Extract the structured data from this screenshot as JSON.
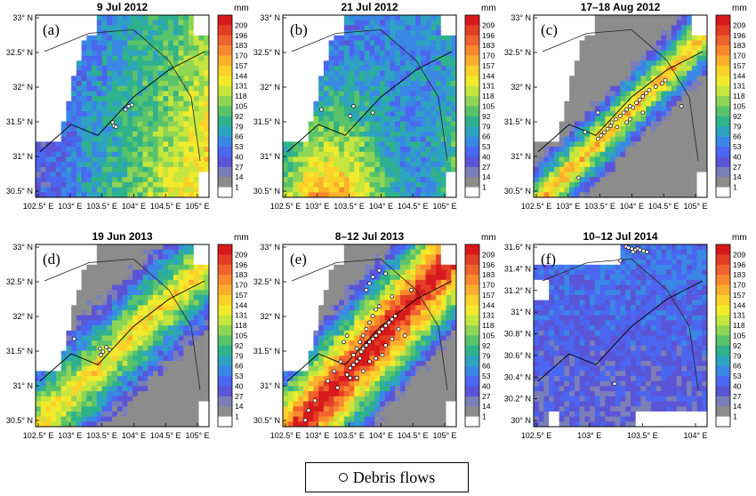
{
  "colorbar": {
    "unit": "mm",
    "ticks": [
      "209",
      "196",
      "183",
      "170",
      "157",
      "144",
      "131",
      "118",
      "105",
      "92",
      "79",
      "66",
      "53",
      "40",
      "27",
      "14",
      "1"
    ],
    "colors": [
      "#d7191c",
      "#e43d26",
      "#f0622e",
      "#f9892e",
      "#fbb02d",
      "#fcd12a",
      "#f2ea2b",
      "#c5e63e",
      "#8fd555",
      "#58c36a",
      "#2fb28b",
      "#2ea3c0",
      "#3b87e6",
      "#4b66f0",
      "#5a55d6",
      "#7b7fb8",
      "#8c8c8c",
      "#ffffff"
    ]
  },
  "legend": {
    "marker": "open-circle",
    "label": "Debris flows"
  },
  "panels": [
    {
      "label": "(a)",
      "title": "9 Jul 2012",
      "yticks": [
        "33° N",
        "32.5° N",
        "32° N",
        "31.5° N",
        "31° N",
        "30.5° N"
      ],
      "xticks": [
        "102.5° E",
        "103° E",
        "103.5° E",
        "104° E",
        "104.5° E",
        "105° E"
      ],
      "intensity": "light",
      "seed": 11,
      "points": [
        [
          103.95,
          31.6
        ],
        [
          104.0,
          31.62
        ],
        [
          103.9,
          31.55
        ],
        [
          103.7,
          31.35
        ],
        [
          103.72,
          31.3
        ],
        [
          103.75,
          31.28
        ]
      ]
    },
    {
      "label": "(b)",
      "title": "21 Jul 2012",
      "yticks": [
        "33° N",
        "32.5° N",
        "32° N",
        "31.5° N",
        "31° N",
        "30.5° N"
      ],
      "xticks": [
        "102.5° E",
        "103° E",
        "103.5° E",
        "104° E",
        "104.5° E",
        "105° E"
      ],
      "intensity": "south",
      "seed": 23,
      "points": [
        [
          103.1,
          31.55
        ],
        [
          103.55,
          31.45
        ],
        [
          103.9,
          31.5
        ],
        [
          103.6,
          31.6
        ]
      ]
    },
    {
      "label": "(c)",
      "title": "17–18 Aug 2012",
      "yticks": [
        "33° N",
        "32.5° N",
        "32° N",
        "31.5° N",
        "31° N",
        "30.5° N"
      ],
      "xticks": [
        "102.5° E",
        "103° E",
        "103.5° E",
        "104° E",
        "104.5° E",
        "105° E"
      ],
      "intensity": "band",
      "seed": 37,
      "points": [
        [
          103.5,
          31.1
        ],
        [
          103.55,
          31.15
        ],
        [
          103.6,
          31.2
        ],
        [
          103.65,
          31.25
        ],
        [
          103.7,
          31.3
        ],
        [
          103.72,
          31.35
        ],
        [
          103.78,
          31.4
        ],
        [
          103.8,
          31.28
        ],
        [
          103.85,
          31.45
        ],
        [
          103.9,
          31.5
        ],
        [
          103.95,
          31.55
        ],
        [
          104.0,
          31.6
        ],
        [
          104.05,
          31.58
        ],
        [
          104.1,
          31.65
        ],
        [
          104.15,
          31.7
        ],
        [
          104.2,
          31.75
        ],
        [
          104.25,
          31.8
        ],
        [
          104.3,
          31.85
        ],
        [
          104.4,
          31.9
        ],
        [
          104.5,
          31.95
        ],
        [
          104.55,
          32.0
        ],
        [
          104.2,
          31.5
        ],
        [
          103.5,
          31.5
        ],
        [
          103.3,
          31.2
        ],
        [
          104.8,
          31.6
        ],
        [
          103.2,
          30.5
        ],
        [
          104.0,
          31.4
        ],
        [
          103.95,
          31.35
        ]
      ]
    },
    {
      "label": "(d)",
      "title": "19 Jun 2013",
      "yticks": [
        "33° N",
        "32.5° N",
        "32° N",
        "31.5° N",
        "31° N",
        "30.5° N"
      ],
      "xticks": [
        "102.5° E",
        "103° E",
        "103.5° E",
        "104° E",
        "104.5° E",
        "105° E"
      ],
      "intensity": "moderate",
      "seed": 53,
      "points": [
        [
          103.1,
          31.55
        ],
        [
          103.5,
          31.4
        ],
        [
          103.55,
          31.35
        ],
        [
          103.6,
          31.42
        ],
        [
          103.65,
          31.38
        ],
        [
          103.52,
          31.3
        ]
      ]
    },
    {
      "label": "(e)",
      "title": "8–12 Jul 2013",
      "yticks": [
        "33° N",
        "32.5° N",
        "32° N",
        "31.5° N",
        "31° N",
        "30.5° N"
      ],
      "xticks": [
        "102.5° E",
        "103° E",
        "103.5° E",
        "104° E",
        "104.5° E",
        "105° E"
      ],
      "intensity": "heavy",
      "seed": 71,
      "points": [
        [
          103.5,
          31.0
        ],
        [
          103.55,
          31.1
        ],
        [
          103.6,
          31.15
        ],
        [
          103.65,
          31.2
        ],
        [
          103.7,
          31.25
        ],
        [
          103.72,
          31.35
        ],
        [
          103.75,
          31.4
        ],
        [
          103.8,
          31.45
        ],
        [
          103.85,
          31.5
        ],
        [
          103.9,
          31.55
        ],
        [
          103.95,
          31.6
        ],
        [
          104.0,
          31.65
        ],
        [
          104.05,
          31.7
        ],
        [
          104.1,
          31.75
        ],
        [
          104.15,
          31.8
        ],
        [
          104.2,
          31.85
        ],
        [
          104.25,
          31.9
        ],
        [
          103.6,
          31.3
        ],
        [
          103.65,
          31.4
        ],
        [
          103.7,
          31.5
        ],
        [
          103.75,
          31.6
        ],
        [
          103.8,
          31.7
        ],
        [
          103.85,
          31.8
        ],
        [
          103.9,
          31.9
        ],
        [
          103.95,
          32.0
        ],
        [
          104.0,
          32.05
        ],
        [
          103.8,
          32.3
        ],
        [
          103.85,
          32.4
        ],
        [
          103.9,
          32.5
        ],
        [
          104.0,
          32.6
        ],
        [
          104.1,
          32.55
        ],
        [
          104.5,
          32.3
        ],
        [
          104.2,
          32.2
        ],
        [
          103.5,
          31.6
        ],
        [
          103.45,
          31.5
        ],
        [
          103.4,
          31.2
        ],
        [
          103.3,
          31.05
        ],
        [
          103.2,
          30.9
        ],
        [
          103.0,
          30.6
        ],
        [
          102.9,
          30.45
        ],
        [
          102.85,
          30.3
        ],
        [
          103.35,
          30.8
        ],
        [
          103.55,
          30.95
        ],
        [
          104.3,
          31.7
        ],
        [
          104.4,
          31.6
        ],
        [
          104.05,
          31.3
        ],
        [
          103.95,
          31.25
        ],
        [
          104.1,
          31.45
        ],
        [
          103.85,
          31.2
        ],
        [
          103.75,
          31.05
        ],
        [
          103.65,
          30.95
        ],
        [
          104.2,
          31.55
        ]
      ]
    },
    {
      "label": "(f)",
      "title": "10–12 Jul 2014",
      "yticks": [
        "31.6° N",
        "31.4° N",
        "31.2° N",
        "31° N",
        "30.8° N",
        "30.6° N",
        "30.4° N",
        "30.2° N",
        "30° N"
      ],
      "xticks": [
        "102.5° E",
        "103° E",
        "103.5° E",
        "104° E"
      ],
      "intensity": "patchy",
      "seed": 89,
      "points": [
        [
          103.3,
          31.68
        ],
        [
          103.32,
          31.67
        ],
        [
          103.35,
          31.66
        ],
        [
          103.38,
          31.65
        ],
        [
          103.4,
          31.66
        ],
        [
          103.42,
          31.65
        ],
        [
          103.45,
          31.64
        ],
        [
          103.48,
          31.63
        ],
        [
          103.36,
          31.63
        ],
        [
          103.25,
          31.55
        ],
        [
          103.2,
          30.4
        ]
      ]
    }
  ]
}
